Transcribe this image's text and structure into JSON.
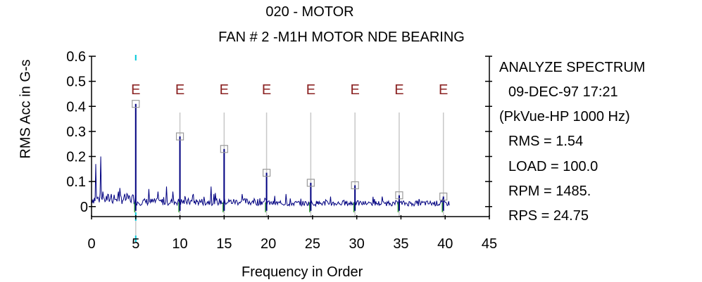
{
  "chart_data": {
    "type": "line",
    "title": "020  - MOTOR",
    "subtitle": "FAN # 2   -M1H   MOTOR NDE BEARING",
    "xlabel": "Frequency in Order",
    "ylabel": "RMS Acc in G-s",
    "xlim": [
      0,
      45
    ],
    "ylim": [
      -0.04,
      0.6
    ],
    "x_ticks": [
      "0",
      "5",
      "10",
      "15",
      "20",
      "25",
      "30",
      "35",
      "40",
      "45"
    ],
    "y_ticks": [
      "0",
      "0.1",
      "0.2",
      "0.3",
      "0.4",
      "0.5",
      "0.6"
    ],
    "series_color": "#000080",
    "cursor_x": 5,
    "cursor_color": "#00c8d8",
    "fault_marker_label": "E",
    "fault_marker_color": "#8b2323",
    "fault_markers_x": [
      5,
      10,
      15,
      19.8,
      24.8,
      29.8,
      34.8,
      39.8
    ],
    "harmonic_peaks": [
      {
        "x": 5.0,
        "y": 0.41
      },
      {
        "x": 10.0,
        "y": 0.28
      },
      {
        "x": 15.0,
        "y": 0.23
      },
      {
        "x": 19.8,
        "y": 0.135
      },
      {
        "x": 24.8,
        "y": 0.095
      },
      {
        "x": 29.8,
        "y": 0.085
      },
      {
        "x": 34.8,
        "y": 0.045
      },
      {
        "x": 39.8,
        "y": 0.04
      }
    ],
    "minor_peaks": [
      {
        "x": 0.5,
        "y": 0.17
      },
      {
        "x": 1.0,
        "y": 0.2
      },
      {
        "x": 1.3,
        "y": 0.06
      },
      {
        "x": 2.2,
        "y": 0.05
      },
      {
        "x": 3.0,
        "y": 0.06
      },
      {
        "x": 4.3,
        "y": 0.04
      },
      {
        "x": 6.5,
        "y": 0.07
      },
      {
        "x": 7.5,
        "y": 0.06
      },
      {
        "x": 8.5,
        "y": 0.08
      },
      {
        "x": 9.2,
        "y": 0.06
      },
      {
        "x": 11.5,
        "y": 0.05
      },
      {
        "x": 13.5,
        "y": 0.08
      },
      {
        "x": 17.0,
        "y": 0.05
      },
      {
        "x": 22.0,
        "y": 0.05
      },
      {
        "x": 27.0,
        "y": 0.04
      },
      {
        "x": 32.0,
        "y": 0.03
      },
      {
        "x": 37.0,
        "y": 0.03
      }
    ],
    "noise_level": 0.02,
    "data_end_x": 40.5
  },
  "info_panel": {
    "mode": "ANALYZE SPECTRUM",
    "date_time": "09-DEC-97  17:21",
    "mode_detail": "(PkVue-HP 1000 Hz)",
    "rms": "RMS =  1.54",
    "load": "LOAD = 100.0",
    "rpm": "RPM =  1485.",
    "rps": "RPS =  24.75"
  }
}
